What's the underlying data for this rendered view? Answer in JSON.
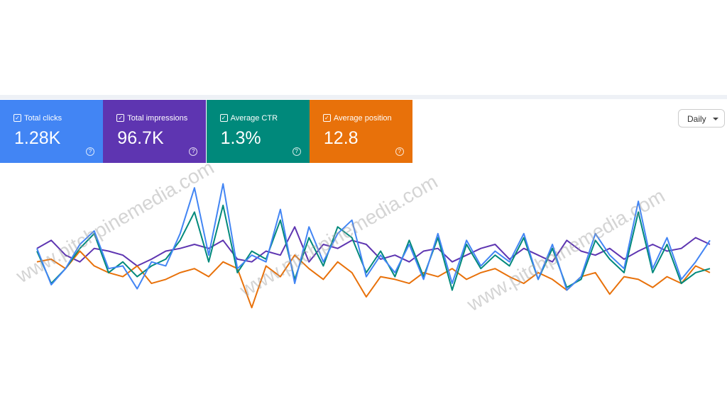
{
  "watermark": "www.pitchpinemedia.com",
  "chart_data": {
    "type": "line",
    "ylim": [
      0,
      100
    ],
    "granularity": "Daily",
    "series": [
      {
        "name": "Total clicks",
        "summary": "1.28K",
        "color": "#4285f4",
        "values": [
          47,
          20,
          32,
          50,
          60,
          32,
          34,
          17,
          37,
          34,
          58,
          92,
          42,
          95,
          32,
          42,
          37,
          76,
          21,
          63,
          37,
          58,
          68,
          26,
          42,
          29,
          50,
          24,
          58,
          21,
          53,
          34,
          45,
          37,
          58,
          24,
          50,
          16,
          26,
          58,
          42,
          32,
          82,
          32,
          55,
          24,
          37,
          53
        ]
      },
      {
        "name": "Total impressions",
        "summary": "96.7K",
        "color": "#5e35b1",
        "values": [
          47,
          53,
          42,
          37,
          47,
          45,
          42,
          34,
          39,
          45,
          47,
          50,
          47,
          53,
          39,
          37,
          45,
          42,
          63,
          37,
          50,
          47,
          53,
          50,
          39,
          42,
          37,
          45,
          47,
          37,
          42,
          47,
          50,
          39,
          47,
          42,
          37,
          53,
          45,
          42,
          47,
          39,
          45,
          50,
          45,
          47,
          55,
          50
        ]
      },
      {
        "name": "Average CTR",
        "summary": "1.3%",
        "color": "#00897b",
        "values": [
          45,
          21,
          32,
          47,
          58,
          29,
          37,
          26,
          34,
          39,
          53,
          74,
          37,
          79,
          29,
          45,
          39,
          68,
          24,
          55,
          34,
          63,
          55,
          29,
          45,
          26,
          53,
          26,
          55,
          16,
          50,
          32,
          42,
          34,
          55,
          24,
          47,
          18,
          24,
          53,
          39,
          29,
          74,
          29,
          50,
          21,
          29,
          32
        ]
      },
      {
        "name": "Average position",
        "summary": "12.8",
        "color": "#e8710a",
        "values": [
          37,
          39,
          32,
          45,
          34,
          29,
          26,
          34,
          21,
          24,
          29,
          32,
          26,
          37,
          32,
          3,
          34,
          26,
          42,
          32,
          24,
          37,
          29,
          11,
          26,
          24,
          21,
          29,
          26,
          32,
          24,
          29,
          32,
          26,
          21,
          29,
          24,
          16,
          26,
          29,
          13,
          26,
          24,
          18,
          26,
          21,
          34,
          29
        ]
      }
    ]
  }
}
